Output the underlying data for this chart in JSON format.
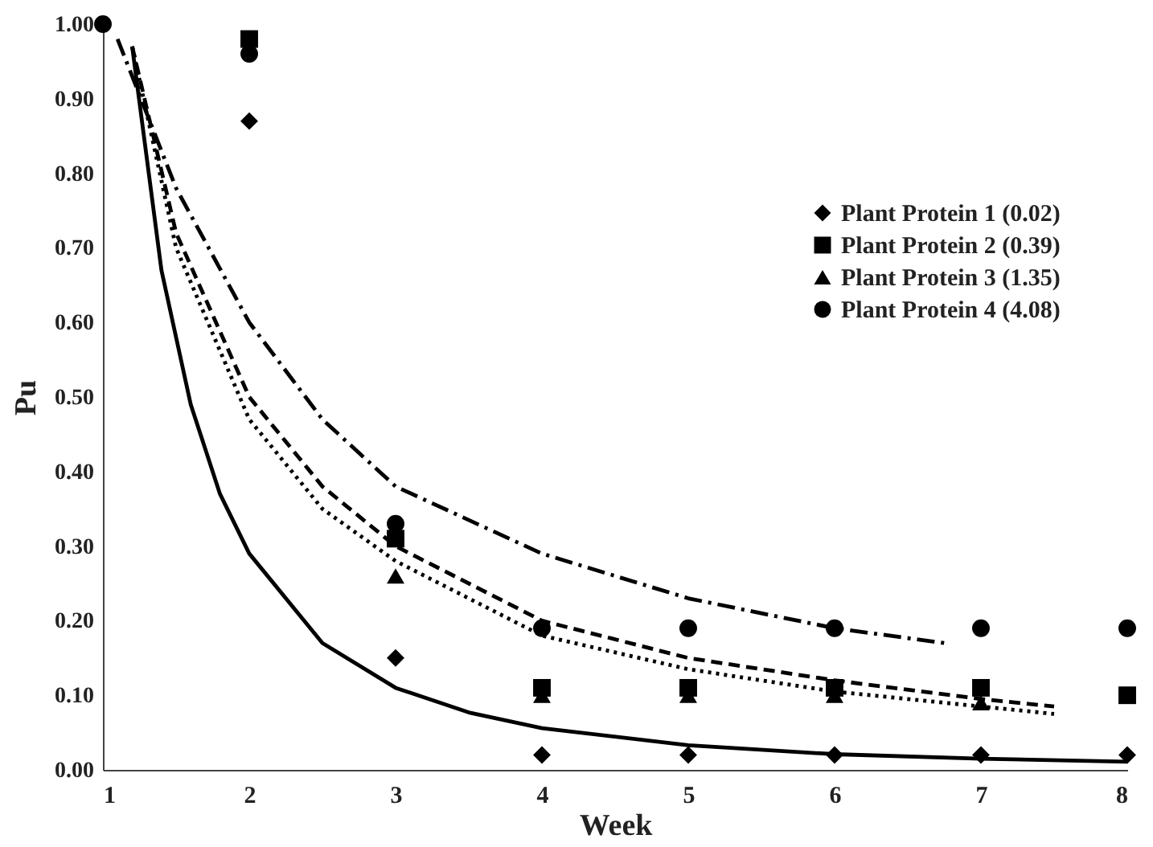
{
  "chart_data": {
    "type": "scatter",
    "xlabel": "Week",
    "ylabel": "Pu",
    "xlim": [
      1,
      8
    ],
    "xticks": [
      1,
      2,
      3,
      4,
      5,
      6,
      7,
      8
    ],
    "ylim": [
      0,
      1
    ],
    "yticks": [
      {
        "value": 0,
        "label": "0.00"
      },
      {
        "value": 0.1,
        "label": "0.10"
      },
      {
        "value": 0.2,
        "label": "0.20"
      },
      {
        "value": 0.3,
        "label": "0.30"
      },
      {
        "value": 0.4,
        "label": "0.40"
      },
      {
        "value": 0.5,
        "label": "0.50"
      },
      {
        "value": 0.6,
        "label": "0.60"
      },
      {
        "value": 0.7,
        "label": "0.70"
      },
      {
        "value": 0.8,
        "label": "0.80"
      },
      {
        "value": 0.9,
        "label": "0.90"
      },
      {
        "value": 1,
        "label": "1.00"
      }
    ],
    "x": [
      1,
      2,
      3,
      4,
      5,
      6,
      7,
      8
    ],
    "grid": false,
    "legend": "top right",
    "series": [
      {
        "name": "Plant Protein 1 (0.02)",
        "color": "#000000",
        "marker": "diamond",
        "values": [
          null,
          0.87,
          0.15,
          0.02,
          0.02,
          0.02,
          0.02,
          0.02
        ]
      },
      {
        "name": "Plant Protein 2 (0.39)",
        "color": "#000000",
        "marker": "square",
        "values": [
          null,
          0.98,
          0.31,
          0.11,
          0.11,
          0.11,
          0.11,
          0.1
        ]
      },
      {
        "name": "Plant Protein 3 (1.35)",
        "color": "#000000",
        "marker": "triangle",
        "values": [
          null,
          null,
          0.26,
          0.1,
          0.1,
          0.1,
          0.09,
          null
        ]
      },
      {
        "name": "Plant Protein 4 (4.08)",
        "color": "#000000",
        "marker": "circle",
        "values": [
          1.0,
          0.96,
          0.33,
          0.19,
          0.19,
          0.19,
          0.19,
          0.19
        ]
      },
      {
        "type": "line",
        "color": "#000000",
        "line_style": "solid",
        "x": [
          1.2,
          1.4,
          1.6,
          1.8,
          2,
          2.5,
          3,
          3.5,
          4,
          5,
          6,
          7,
          8
        ],
        "values": [
          0.97,
          0.67,
          0.49,
          0.37,
          0.29,
          0.17,
          0.11,
          0.077,
          0.056,
          0.033,
          0.021,
          0.015,
          0.011
        ]
      },
      {
        "type": "line",
        "color": "#000000",
        "line_style": "dashed",
        "x": [
          1.2,
          1.5,
          2,
          2.5,
          3,
          4,
          5,
          6,
          7,
          7.5
        ],
        "values": [
          0.97,
          0.72,
          0.5,
          0.38,
          0.3,
          0.2,
          0.15,
          0.12,
          0.095,
          0.085
        ]
      },
      {
        "type": "line",
        "color": "#000000",
        "line_style": "dotted",
        "x": [
          1.2,
          1.5,
          2,
          2.5,
          3,
          4,
          5,
          6,
          7,
          7.5
        ],
        "values": [
          0.97,
          0.7,
          0.47,
          0.35,
          0.28,
          0.18,
          0.135,
          0.105,
          0.085,
          0.075
        ]
      },
      {
        "type": "line",
        "color": "#000000",
        "line_style": "dashdot",
        "x": [
          1.1,
          1.5,
          2,
          2.5,
          3,
          4,
          5,
          6,
          6.75
        ],
        "values": [
          0.98,
          0.78,
          0.6,
          0.47,
          0.38,
          0.29,
          0.23,
          0.19,
          0.17
        ]
      }
    ]
  }
}
